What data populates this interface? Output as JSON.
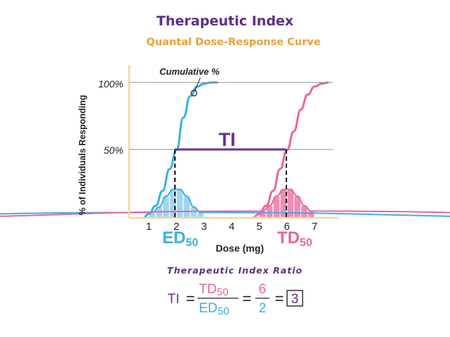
{
  "chart_data": {
    "type": "line",
    "title": "Therapeutic Index",
    "subtitle": "Quantal Dose-Response Curve",
    "xlabel": "Dose (mg)",
    "ylabel": "% of Individuals Responding",
    "x_ticks": [
      "1",
      "2",
      "3",
      "4",
      "5",
      "6",
      "7"
    ],
    "y_ticks": [
      "50%",
      "100%"
    ],
    "xlim": [
      0.6,
      8.0
    ],
    "ylim": [
      0,
      100
    ],
    "grid": false,
    "series": [
      {
        "name": "ED50",
        "color": "#3ab0e2",
        "fill": "#9fd6f2",
        "x": [
          0.8,
          1.0,
          1.25,
          1.5,
          1.75,
          2.0,
          2.25,
          2.5,
          2.75,
          3.0,
          3.25,
          3.5
        ],
        "cumulative": [
          0,
          3,
          9,
          20,
          36,
          50,
          74,
          90,
          97,
          99,
          100,
          100
        ],
        "histogram": {
          "x": [
            1.125,
            1.375,
            1.625,
            1.875,
            2.125,
            2.375,
            2.625,
            2.875
          ],
          "heights": [
            4,
            8,
            16,
            21,
            21,
            16,
            8,
            4
          ]
        }
      },
      {
        "name": "TD50",
        "color": "#e8679a",
        "fill": "#f28bb5",
        "x": [
          4.75,
          5.0,
          5.25,
          5.5,
          5.75,
          6.0,
          6.25,
          6.5,
          6.75,
          7.0,
          7.25,
          7.5
        ],
        "cumulative": [
          0,
          3,
          9,
          20,
          36,
          50,
          64,
          80,
          91,
          97,
          99,
          100
        ],
        "histogram": {
          "x": [
            5.125,
            5.375,
            5.625,
            5.875,
            6.125,
            6.375,
            6.625,
            6.875
          ],
          "heights": [
            5,
            9,
            16,
            21,
            21,
            16,
            9,
            5
          ]
        }
      }
    ],
    "annotations": {
      "cumulative_label": "Cumulative %",
      "ti_label": "TI",
      "ed50": {
        "text": "ED",
        "sub": "50",
        "x": 2,
        "y": 50
      },
      "td50": {
        "text": "TD",
        "sub": "50",
        "x": 6,
        "y": 50
      }
    }
  },
  "formula": {
    "title": "Therapeutic Index Ratio",
    "lhs": "TI",
    "equals": "=",
    "numerator": {
      "text": "TD",
      "sub": "50"
    },
    "denominator": {
      "text": "ED",
      "sub": "50"
    },
    "num_value": "6",
    "den_value": "2",
    "result": "3"
  },
  "colors": {
    "title": "#5e2d87",
    "subtitle": "#e8a23a",
    "axis": "#f1d7a0",
    "blue": "#3ab0e2",
    "pink": "#e8679a",
    "ti_line": "#6b2f93",
    "gridline": "#888888",
    "text": "#222222"
  }
}
